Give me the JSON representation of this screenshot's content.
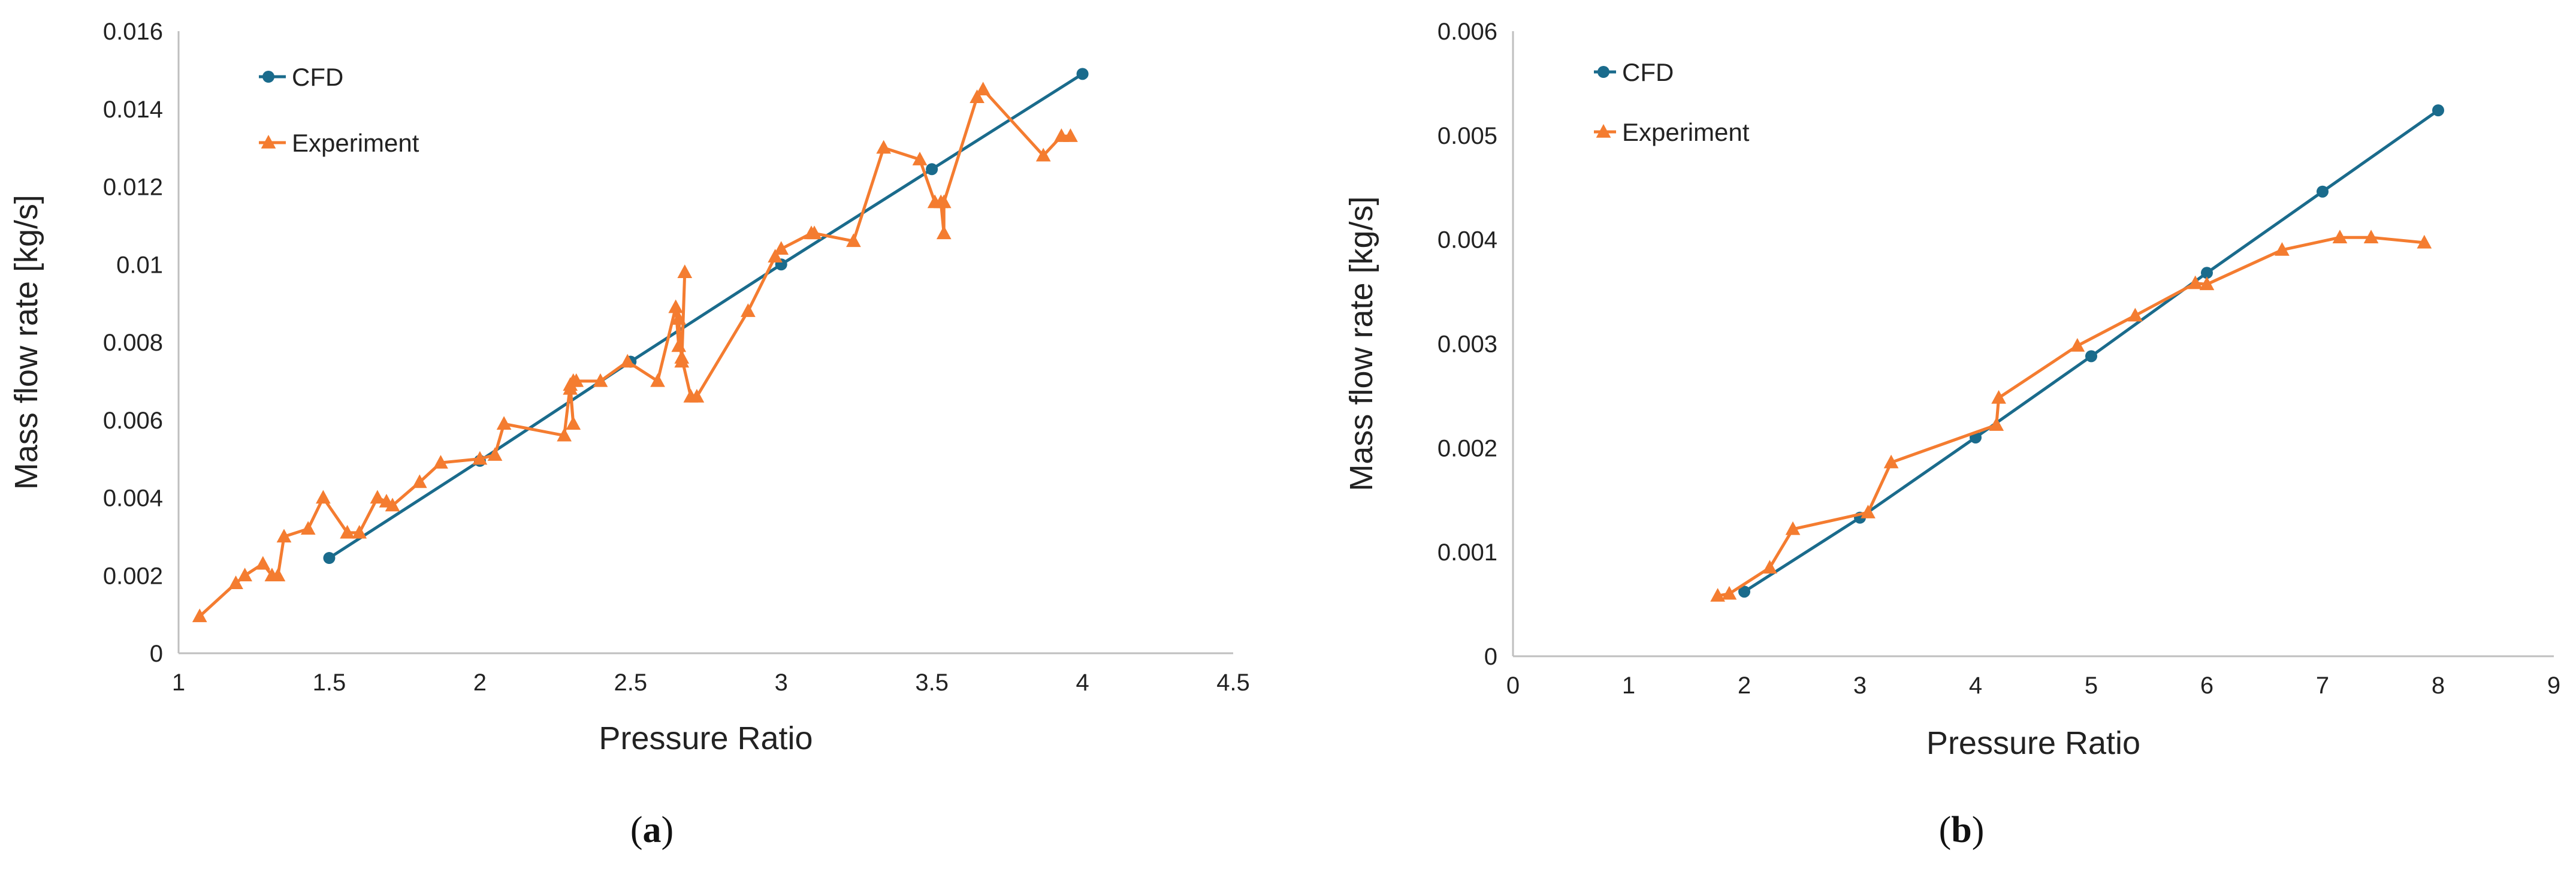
{
  "chart_data": [
    {
      "type": "line",
      "panel_label": "a",
      "xlabel": "Pressure Ratio",
      "ylabel": "Mass flow rate [kg/s]",
      "xlim": [
        1,
        4.5
      ],
      "ylim": [
        0,
        0.016
      ],
      "x_ticks": [
        1,
        1.5,
        2,
        2.5,
        3,
        3.5,
        4,
        4.5
      ],
      "x_tick_labels": [
        "1",
        "1.5",
        "2",
        "2.5",
        "3",
        "3.5",
        "4",
        "4.5"
      ],
      "y_ticks": [
        0,
        0.002,
        0.004,
        0.006,
        0.008,
        0.01,
        0.012,
        0.014,
        0.016
      ],
      "y_tick_labels": [
        "0",
        "0.002",
        "0.004",
        "0.006",
        "0.008",
        "0.01",
        "0.012",
        "0.014",
        "0.016"
      ],
      "grid": false,
      "legend_position": "top-left",
      "series": [
        {
          "name": "CFD",
          "color": "#1a6b8c",
          "marker": "circle",
          "x": [
            1.5,
            2.0,
            2.5,
            3.0,
            3.5,
            4.0
          ],
          "y": [
            0.00245,
            0.00495,
            0.0075,
            0.01,
            0.01245,
            0.0149
          ]
        },
        {
          "name": "Experiment",
          "color": "#f47c30",
          "marker": "triangle",
          "x": [
            1.07,
            1.19,
            1.22,
            1.28,
            1.31,
            1.33,
            1.35,
            1.43,
            1.48,
            1.56,
            1.6,
            1.66,
            1.69,
            1.71,
            1.8,
            1.87,
            2.0,
            2.05,
            2.08,
            2.28,
            2.3,
            2.31,
            2.3,
            2.31,
            2.32,
            2.4,
            2.49,
            2.59,
            2.65,
            2.66,
            2.66,
            2.67,
            2.68,
            2.67,
            2.7,
            2.72,
            2.89,
            2.98,
            3.0,
            3.1,
            3.11,
            3.24,
            3.34,
            3.46,
            3.51,
            3.53,
            3.54,
            3.54,
            3.65,
            3.67,
            3.87,
            3.93,
            3.96
          ],
          "y": [
            0.00095,
            0.0018,
            0.002,
            0.0023,
            0.002,
            0.002,
            0.003,
            0.0032,
            0.004,
            0.0031,
            0.0031,
            0.004,
            0.0039,
            0.0038,
            0.0044,
            0.0049,
            0.005,
            0.0051,
            0.0059,
            0.0056,
            0.0069,
            0.0059,
            0.0068,
            0.007,
            0.007,
            0.007,
            0.0075,
            0.007,
            0.0089,
            0.0079,
            0.0086,
            0.0075,
            0.0098,
            0.0076,
            0.0066,
            0.0066,
            0.0088,
            0.0102,
            0.0104,
            0.0108,
            0.0108,
            0.0106,
            0.013,
            0.0127,
            0.0116,
            0.0116,
            0.0108,
            0.0116,
            0.0143,
            0.0145,
            0.0128,
            0.0133,
            0.0133
          ]
        }
      ]
    },
    {
      "type": "line",
      "panel_label": "b",
      "xlabel": "Pressure Ratio",
      "ylabel": "Mass flow rate [kg/s]",
      "xlim": [
        0,
        9
      ],
      "ylim": [
        0,
        0.006
      ],
      "x_ticks": [
        0,
        1,
        2,
        3,
        4,
        5,
        6,
        7,
        8,
        9
      ],
      "x_tick_labels": [
        "0",
        "1",
        "2",
        "3",
        "4",
        "5",
        "6",
        "7",
        "8",
        "9"
      ],
      "y_ticks": [
        0,
        0.001,
        0.002,
        0.003,
        0.004,
        0.005,
        0.006
      ],
      "y_tick_labels": [
        "0",
        "0.001",
        "0.002",
        "0.003",
        "0.004",
        "0.005",
        "0.006"
      ],
      "grid": false,
      "legend_position": "top-left",
      "series": [
        {
          "name": "CFD",
          "color": "#1a6b8c",
          "marker": "circle",
          "x": [
            2,
            3,
            4,
            5,
            6,
            7,
            8
          ],
          "y": [
            0.00062,
            0.00133,
            0.0021,
            0.00288,
            0.00368,
            0.00446,
            0.00524
          ]
        },
        {
          "name": "Experiment",
          "color": "#f47c30",
          "marker": "triangle",
          "x": [
            1.77,
            1.87,
            2.22,
            2.42,
            3.07,
            3.27,
            4.18,
            4.2,
            4.88,
            5.38,
            5.9,
            6.0,
            6.65,
            7.15,
            7.42,
            7.88
          ],
          "y": [
            0.00058,
            0.0006,
            0.00085,
            0.00122,
            0.00138,
            0.00186,
            0.00222,
            0.00248,
            0.00298,
            0.00327,
            0.00358,
            0.00357,
            0.0039,
            0.00402,
            0.00402,
            0.00397
          ]
        }
      ]
    }
  ]
}
